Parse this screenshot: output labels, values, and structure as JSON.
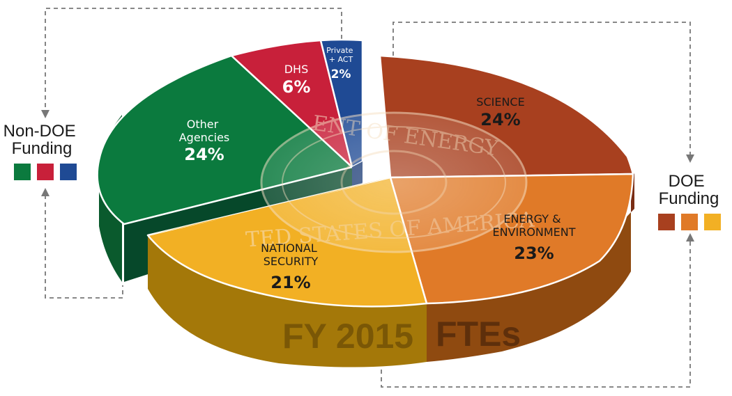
{
  "chart_data": {
    "type": "pie",
    "title": "FY 2015 FTEs",
    "title_parts": [
      "FY 2015",
      "FTEs"
    ],
    "groups": [
      {
        "name": "Non-DOE Funding",
        "label_lines": [
          "Non-DOE",
          "Funding"
        ],
        "colors": [
          "#0b7a3e",
          "#c8203a",
          "#1f4a94"
        ]
      },
      {
        "name": "DOE Funding",
        "label_lines": [
          "DOE",
          "Funding"
        ],
        "colors": [
          "#a8401f",
          "#e07a28",
          "#f2b024"
        ]
      }
    ],
    "slices": [
      {
        "label_lines": [
          "SCIENCE"
        ],
        "value": 24,
        "pct": "24%",
        "color": "#a8401f",
        "group": "DOE Funding"
      },
      {
        "label_lines": [
          "ENERGY &",
          "ENVIRONMENT"
        ],
        "value": 23,
        "pct": "23%",
        "color": "#e07a28",
        "group": "DOE Funding"
      },
      {
        "label_lines": [
          "NATIONAL",
          "SECURITY"
        ],
        "value": 21,
        "pct": "21%",
        "color": "#f2b024",
        "group": "DOE Funding"
      },
      {
        "label_lines": [
          "Other",
          "Agencies"
        ],
        "value": 24,
        "pct": "24%",
        "color": "#0b7a3e",
        "group": "Non-DOE Funding"
      },
      {
        "label_lines": [
          "DHS"
        ],
        "value": 6,
        "pct": "6%",
        "color": "#c8203a",
        "group": "Non-DOE Funding"
      },
      {
        "label_lines": [
          "Private",
          "+ ACT"
        ],
        "value": 2,
        "pct": "2%",
        "color": "#1f4a94",
        "group": "Non-DOE Funding"
      }
    ],
    "seal_text": [
      "ENT OF ENERGY",
      "TED STATES OF AMERICA"
    ]
  }
}
